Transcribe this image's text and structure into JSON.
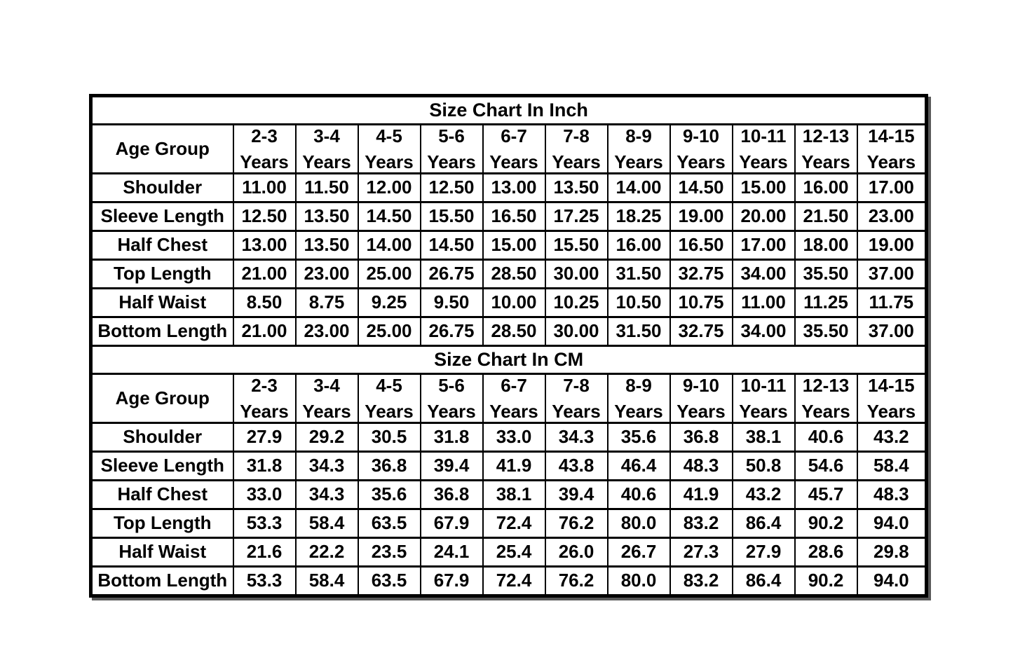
{
  "page": {
    "background": "#ffffff",
    "grid_color": "#000000",
    "text_color": "#000000"
  },
  "chart_data": [
    {
      "type": "table",
      "title": "Size Chart In Inch",
      "corner_label": "Age Group",
      "column_suffix": "Years",
      "columns": [
        "2-3",
        "3-4",
        "4-5",
        "5-6",
        "6-7",
        "7-8",
        "8-9",
        "9-10",
        "10-11",
        "12-13",
        "14-15"
      ],
      "rows": [
        {
          "label": "Shoulder",
          "values": [
            "11.00",
            "11.50",
            "12.00",
            "12.50",
            "13.00",
            "13.50",
            "14.00",
            "14.50",
            "15.00",
            "16.00",
            "17.00"
          ]
        },
        {
          "label": "Sleeve Length",
          "values": [
            "12.50",
            "13.50",
            "14.50",
            "15.50",
            "16.50",
            "17.25",
            "18.25",
            "19.00",
            "20.00",
            "21.50",
            "23.00"
          ]
        },
        {
          "label": "Half Chest",
          "values": [
            "13.00",
            "13.50",
            "14.00",
            "14.50",
            "15.00",
            "15.50",
            "16.00",
            "16.50",
            "17.00",
            "18.00",
            "19.00"
          ]
        },
        {
          "label": "Top Length",
          "values": [
            "21.00",
            "23.00",
            "25.00",
            "26.75",
            "28.50",
            "30.00",
            "31.50",
            "32.75",
            "34.00",
            "35.50",
            "37.00"
          ]
        },
        {
          "label": "Half Waist",
          "values": [
            "8.50",
            "8.75",
            "9.25",
            "9.50",
            "10.00",
            "10.25",
            "10.50",
            "10.75",
            "11.00",
            "11.25",
            "11.75"
          ]
        },
        {
          "label": "Bottom Length",
          "values": [
            "21.00",
            "23.00",
            "25.00",
            "26.75",
            "28.50",
            "30.00",
            "31.50",
            "32.75",
            "34.00",
            "35.50",
            "37.00"
          ]
        }
      ]
    },
    {
      "type": "table",
      "title": "Size Chart In CM",
      "corner_label": "Age Group",
      "column_suffix": "Years",
      "columns": [
        "2-3",
        "3-4",
        "4-5",
        "5-6",
        "6-7",
        "7-8",
        "8-9",
        "9-10",
        "10-11",
        "12-13",
        "14-15"
      ],
      "rows": [
        {
          "label": "Shoulder",
          "values": [
            "27.9",
            "29.2",
            "30.5",
            "31.8",
            "33.0",
            "34.3",
            "35.6",
            "36.8",
            "38.1",
            "40.6",
            "43.2"
          ]
        },
        {
          "label": "Sleeve Length",
          "values": [
            "31.8",
            "34.3",
            "36.8",
            "39.4",
            "41.9",
            "43.8",
            "46.4",
            "48.3",
            "50.8",
            "54.6",
            "58.4"
          ]
        },
        {
          "label": "Half Chest",
          "values": [
            "33.0",
            "34.3",
            "35.6",
            "36.8",
            "38.1",
            "39.4",
            "40.6",
            "41.9",
            "43.2",
            "45.7",
            "48.3"
          ]
        },
        {
          "label": "Top Length",
          "values": [
            "53.3",
            "58.4",
            "63.5",
            "67.9",
            "72.4",
            "76.2",
            "80.0",
            "83.2",
            "86.4",
            "90.2",
            "94.0"
          ]
        },
        {
          "label": "Half Waist",
          "values": [
            "21.6",
            "22.2",
            "23.5",
            "24.1",
            "25.4",
            "26.0",
            "26.7",
            "27.3",
            "27.9",
            "28.6",
            "29.8"
          ]
        },
        {
          "label": "Bottom Length",
          "values": [
            "53.3",
            "58.4",
            "63.5",
            "67.9",
            "72.4",
            "76.2",
            "80.0",
            "83.2",
            "86.4",
            "90.2",
            "94.0"
          ]
        }
      ]
    }
  ]
}
